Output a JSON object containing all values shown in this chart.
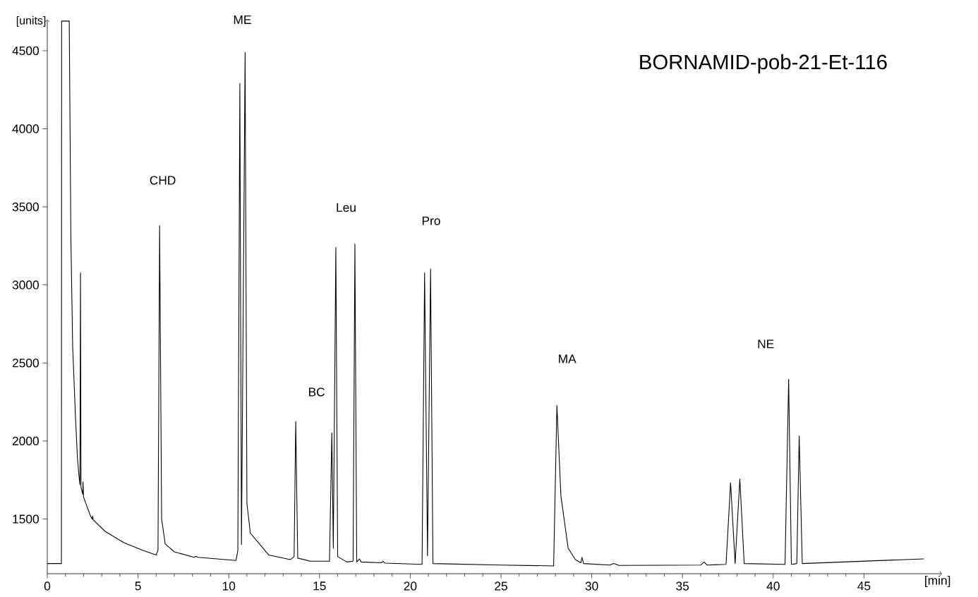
{
  "chart_data": {
    "type": "line",
    "title": "BORNAMID-pob-21-Et-116",
    "xlabel": "[min]",
    "ylabel": "[units]",
    "x": [
      0,
      0.78,
      0.79,
      1.21,
      1.3,
      1.4,
      1.56,
      1.66,
      1.76,
      1.8,
      1.83,
      1.86,
      1.95,
      1.97,
      2.0,
      2.38,
      2.48,
      2.5,
      2.53,
      3.2,
      4.2,
      5.25,
      6.0,
      6.1,
      6.19,
      6.3,
      6.5,
      7,
      8.1,
      8.2,
      8.3,
      10.4,
      10.5,
      10.61,
      10.7,
      10.9,
      11.0,
      11.19,
      12.2,
      13.4,
      13.6,
      13.69,
      13.8,
      14.5,
      15.55,
      15.68,
      15.76,
      15.9,
      16.0,
      16.5,
      16.85,
      16.95,
      17.05,
      17.2,
      17.3,
      18.4,
      18.5,
      18.6,
      20.65,
      20.79,
      20.95,
      21.12,
      21.25,
      25,
      27.9,
      28.08,
      28.3,
      28.7,
      29.1,
      29.4,
      29.46,
      29.55,
      31.0,
      31.2,
      31.5,
      36.0,
      36.19,
      36.35,
      37.4,
      37.65,
      37.9,
      38.16,
      38.4,
      40.65,
      40.85,
      41.0,
      41.3,
      41.43,
      41.6,
      48.3
    ],
    "values": [
      1215,
      1215,
      4690,
      4690,
      3300,
      2600,
      2137,
      1895,
      1760,
      1720,
      3078,
      1701,
      1660,
      1738,
      1640,
      1520,
      1500,
      1519,
      1495,
      1420,
      1350,
      1300,
      1270,
      1300,
      3380,
      1500,
      1340,
      1290,
      1255,
      1262,
      1255,
      1235,
      1300,
      4290,
      1338,
      4489,
      1600,
      1410,
      1270,
      1240,
      1260,
      2125,
      1250,
      1230,
      1230,
      2053,
      1313,
      3240,
      1260,
      1225,
      1230,
      3262,
      1225,
      1245,
      1225,
      1220,
      1230,
      1218,
      1210,
      3078,
      1265,
      3102,
      1215,
      1205,
      1200,
      2227,
      1650,
      1313,
      1240,
      1220,
      1255,
      1215,
      1205,
      1215,
      1203,
      1205,
      1225,
      1205,
      1210,
      1733,
      1215,
      1757,
      1215,
      1210,
      2395,
      1210,
      1215,
      2032,
      1215,
      1245
    ],
    "color": "#000000",
    "xlim": [
      0,
      49.3
    ],
    "ylim": [
      1150,
      4700
    ],
    "xticks": [
      0,
      5,
      10,
      15,
      20,
      25,
      30,
      35,
      40,
      45
    ],
    "yticks": [
      1500,
      2000,
      2500,
      3000,
      3500,
      4000,
      4500
    ],
    "annotations": [
      "CHD",
      "ME",
      "BC",
      "Leu",
      "Pro",
      "MA",
      "NE"
    ]
  }
}
